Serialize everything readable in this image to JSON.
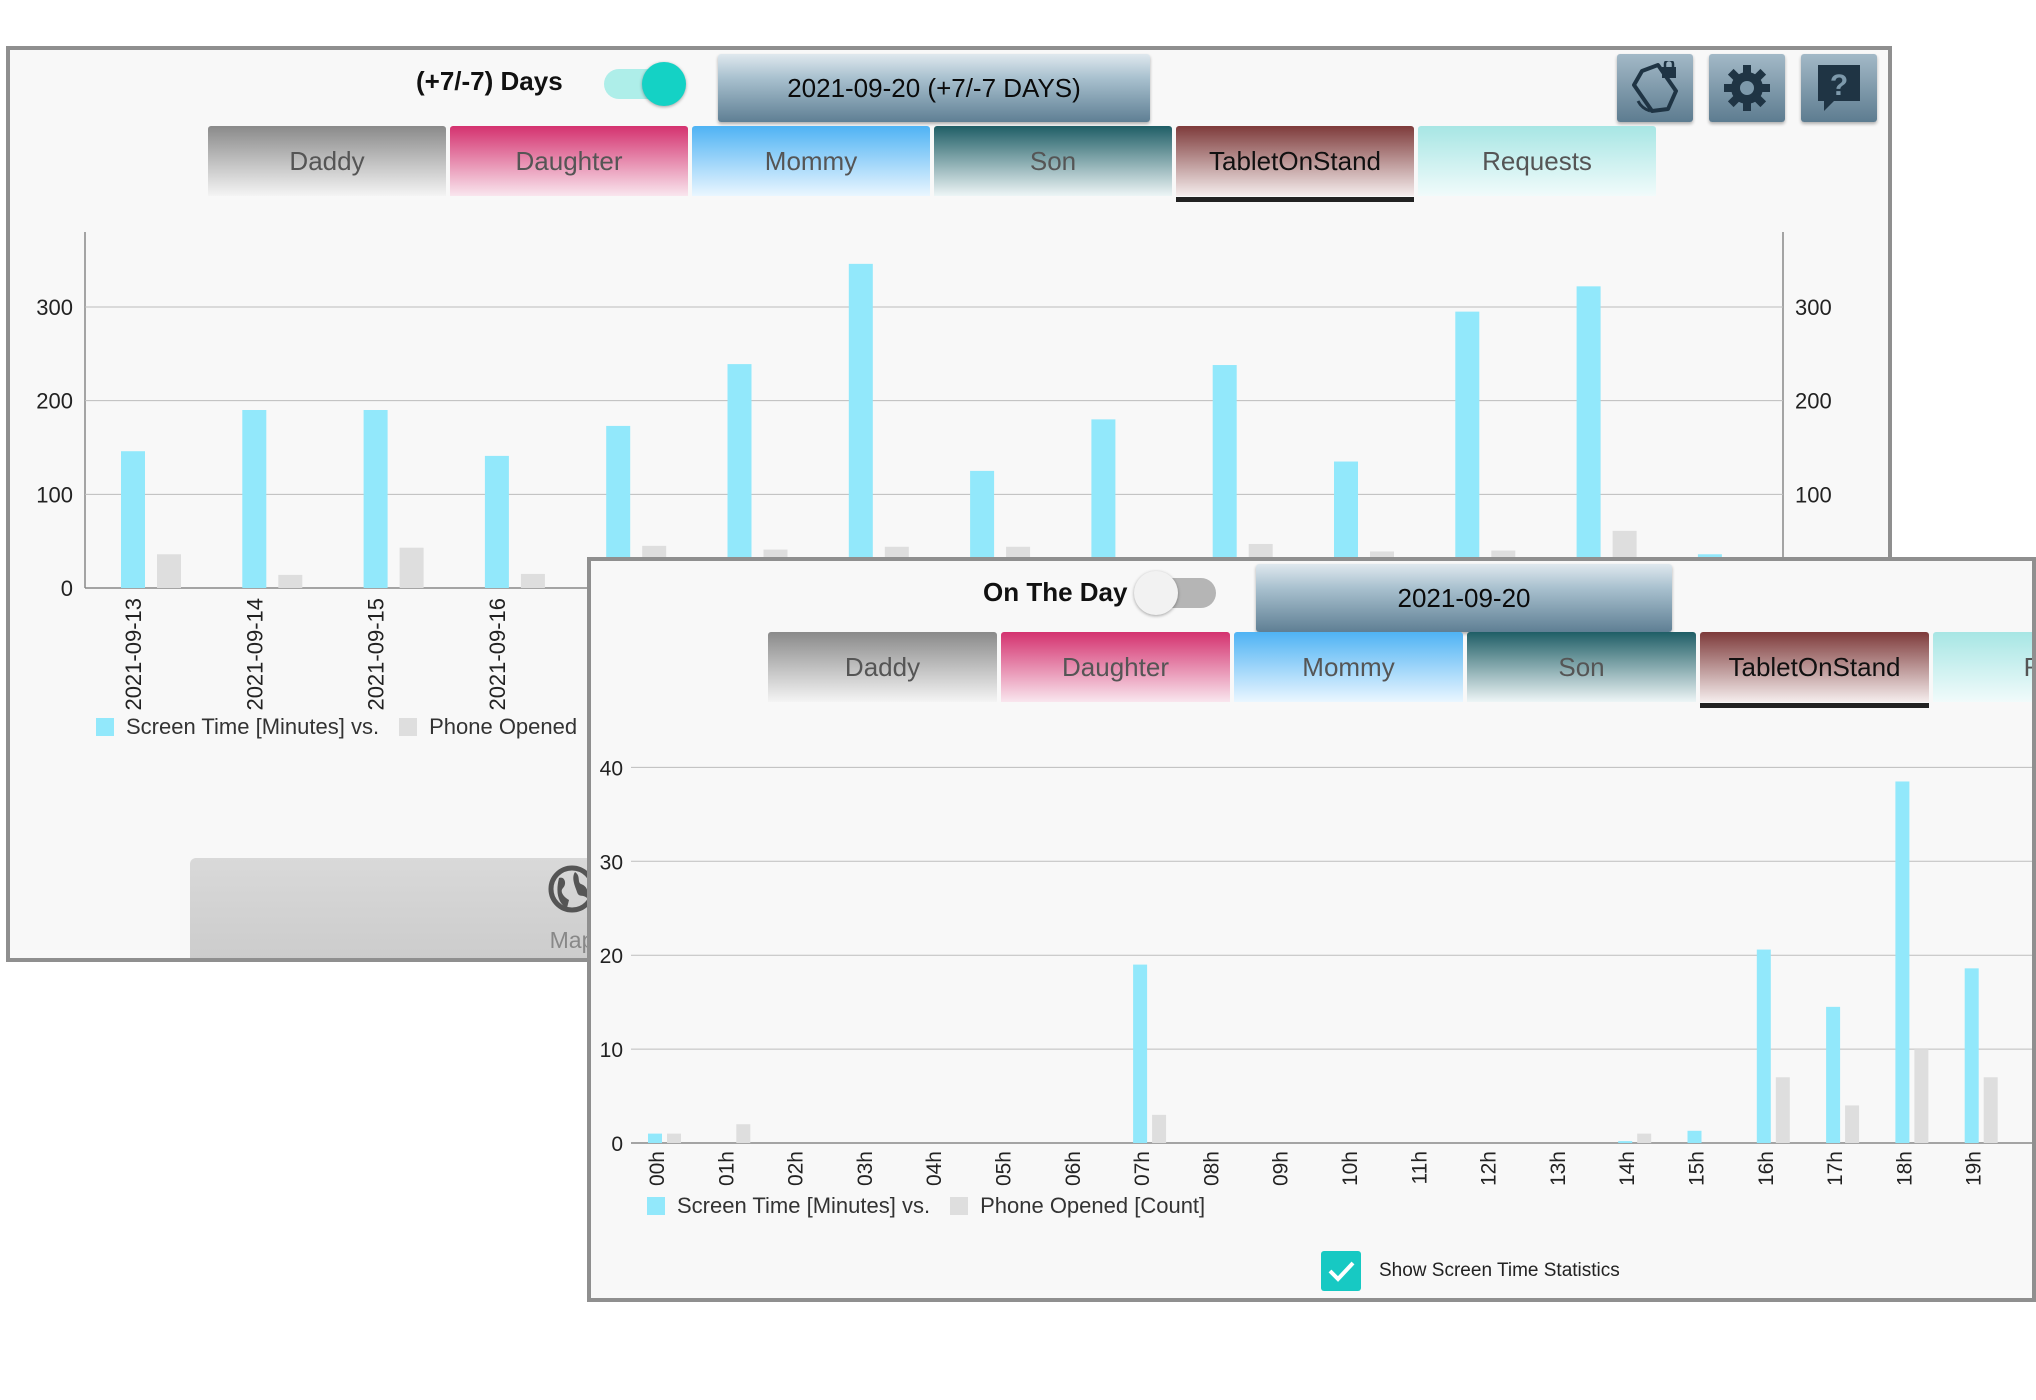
{
  "colors": {
    "screen_time": "#92e8fb",
    "phone_opened": "#dedede",
    "toggle_on_track": "#aeeee9",
    "toggle_on_knob": "#14d2c5",
    "toggle_off_track": "#b5b5b5",
    "toggle_off_knob": "#f2f2f2",
    "checkbox": "#17c9c3"
  },
  "window_week": {
    "toggle_label": "(+7/-7) Days",
    "toggle_on": true,
    "date_button": "2021-09-20 (+7/-7 DAYS)",
    "icons": [
      "rotation-lock-icon",
      "gear-icon",
      "help-icon"
    ],
    "tabs": [
      {
        "label": "Daddy",
        "bg": "linear-gradient(#8a8a8a,#f4f4f4)",
        "active": false
      },
      {
        "label": "Daughter",
        "bg": "linear-gradient(#d4326f,#f9e6ee)",
        "active": false
      },
      {
        "label": "Mommy",
        "bg": "linear-gradient(#4fb3f4,#eaf6ff)",
        "active": false
      },
      {
        "label": "Son",
        "bg": "linear-gradient(#1f5e66,#edf5f6)",
        "active": false
      },
      {
        "label": "TabletOnStand",
        "bg": "linear-gradient(#7e3b3b,#f5eded)",
        "active": true
      },
      {
        "label": "Requests",
        "bg": "linear-gradient(#a7e6e4,#f1fbfb)",
        "active": false
      }
    ],
    "legend": {
      "screen_time": "Screen Time [Minutes] vs.",
      "phone_opened": "Phone Opened"
    },
    "map_label": "Map"
  },
  "window_day": {
    "toggle_label": "On The Day",
    "toggle_on": false,
    "date_button": "2021-09-20",
    "tabs": [
      {
        "label": "Daddy",
        "bg": "linear-gradient(#8a8a8a,#f4f4f4)",
        "active": false
      },
      {
        "label": "Daughter",
        "bg": "linear-gradient(#d4326f,#f9e6ee)",
        "active": false
      },
      {
        "label": "Mommy",
        "bg": "linear-gradient(#4fb3f4,#eaf6ff)",
        "active": false
      },
      {
        "label": "Son",
        "bg": "linear-gradient(#1f5e66,#edf5f6)",
        "active": false
      },
      {
        "label": "TabletOnStand",
        "bg": "linear-gradient(#7e3b3b,#f5eded)",
        "active": true
      },
      {
        "label": "Req",
        "bg": "linear-gradient(#a7e6e4,#f1fbfb)",
        "active": false
      }
    ],
    "legend": {
      "screen_time": "Screen Time [Minutes] vs.",
      "phone_opened": "Phone Opened [Count]"
    },
    "checkbox_label": "Show Screen Time Statistics",
    "checkbox_checked": true
  },
  "chart_data": [
    {
      "type": "bar",
      "categories": [
        "2021-09-13",
        "2021-09-14",
        "2021-09-15",
        "2021-09-16",
        "",
        "",
        "",
        "",
        "",
        "",
        "",
        "",
        "",
        ""
      ],
      "series": [
        {
          "name": "Screen Time [Minutes] vs.",
          "values": [
            146,
            190,
            190,
            141,
            173,
            239,
            346,
            125,
            180,
            238,
            135,
            295,
            322,
            36
          ]
        },
        {
          "name": "Phone Opened",
          "values": [
            36,
            14,
            43,
            15,
            45,
            41,
            44,
            44,
            0,
            47,
            39,
            40,
            61,
            0
          ]
        }
      ],
      "ylim": [
        0,
        380
      ],
      "yticks": [
        0,
        100,
        200,
        300
      ],
      "dual_axis": true,
      "grid": true
    },
    {
      "type": "bar",
      "categories": [
        "00h",
        "01h",
        "02h",
        "03h",
        "04h",
        "05h",
        "06h",
        "07h",
        "08h",
        "09h",
        "10h",
        "11h",
        "12h",
        "13h",
        "14h",
        "15h",
        "16h",
        "17h",
        "18h",
        "19h"
      ],
      "series": [
        {
          "name": "Screen Time [Minutes] vs.",
          "values": [
            1,
            0,
            0,
            0,
            0,
            0,
            0,
            19,
            0,
            0,
            0,
            0,
            0,
            0,
            0.2,
            1.3,
            20.6,
            14.5,
            38.5,
            18.6
          ]
        },
        {
          "name": "Phone Opened [Count]",
          "values": [
            1,
            2,
            0,
            0,
            0,
            0,
            0,
            3,
            0,
            0,
            0,
            0,
            0,
            0,
            1,
            0,
            7,
            4,
            10,
            7
          ]
        }
      ],
      "ylim": [
        0,
        41
      ],
      "yticks": [
        0,
        10,
        20,
        30,
        40
      ],
      "grid": true
    }
  ]
}
